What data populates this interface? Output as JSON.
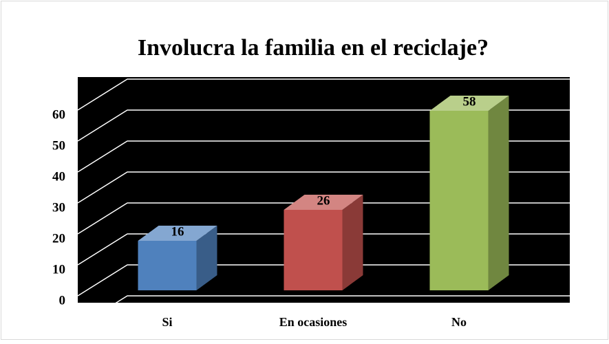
{
  "chart_data": {
    "type": "bar3d",
    "title": "Involucra la familia en el reciclaje?",
    "categories": [
      "Si",
      "En ocasiones",
      "No"
    ],
    "values": [
      16,
      26,
      58
    ],
    "colors": [
      "#4f81bd",
      "#c0504d",
      "#9bbb59"
    ],
    "ylim": [
      0,
      70
    ],
    "yticks": [
      0,
      10,
      20,
      30,
      40,
      50,
      60
    ],
    "grid": true
  }
}
